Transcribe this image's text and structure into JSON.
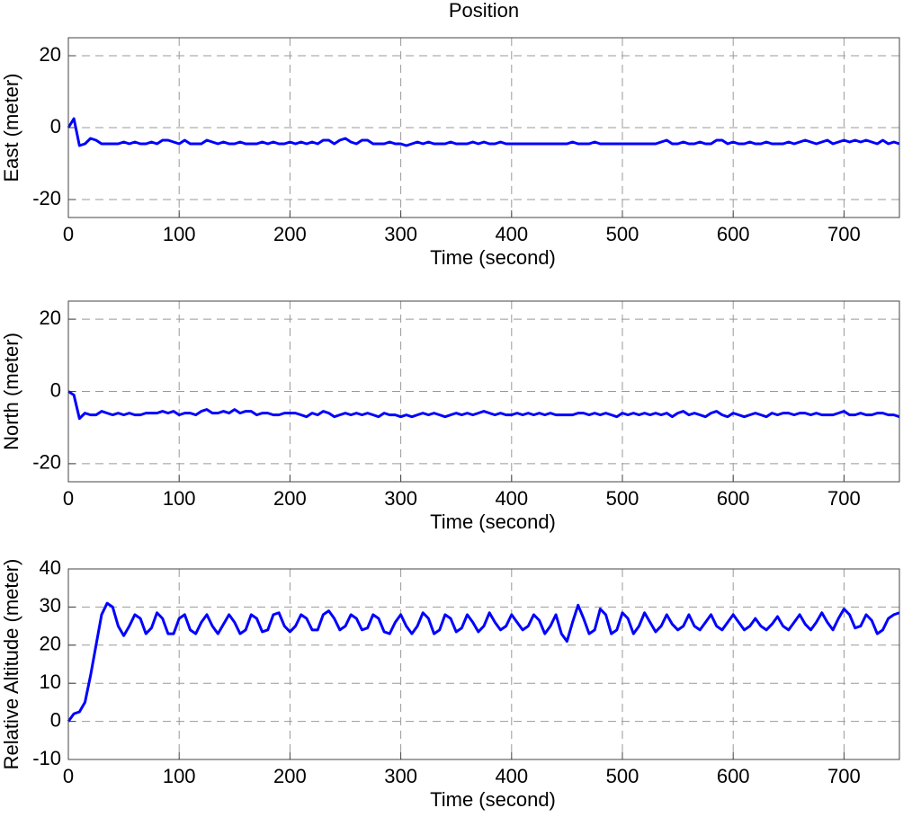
{
  "chart_data": [
    {
      "type": "line",
      "title": "Position",
      "xlabel": "Time (second)",
      "ylabel": "East (meter)",
      "xlim": [
        0,
        750
      ],
      "xticks": [
        0,
        100,
        200,
        300,
        400,
        500,
        600,
        700
      ],
      "ylim": [
        -25,
        25
      ],
      "yticks": [
        -20,
        0,
        20
      ],
      "grid": true,
      "x": [
        0,
        5,
        10,
        15,
        20,
        25,
        30,
        35,
        40,
        45,
        50,
        55,
        60,
        65,
        70,
        75,
        80,
        85,
        90,
        95,
        100,
        105,
        110,
        115,
        120,
        125,
        130,
        135,
        140,
        145,
        150,
        155,
        160,
        165,
        170,
        175,
        180,
        185,
        190,
        195,
        200,
        205,
        210,
        215,
        220,
        225,
        230,
        235,
        240,
        245,
        250,
        255,
        260,
        265,
        270,
        275,
        280,
        285,
        290,
        295,
        300,
        305,
        310,
        315,
        320,
        325,
        330,
        335,
        340,
        345,
        350,
        355,
        360,
        365,
        370,
        375,
        380,
        385,
        390,
        395,
        400,
        405,
        410,
        415,
        420,
        425,
        430,
        435,
        440,
        445,
        450,
        455,
        460,
        465,
        470,
        475,
        480,
        485,
        490,
        495,
        500,
        505,
        510,
        515,
        520,
        525,
        530,
        535,
        540,
        545,
        550,
        555,
        560,
        565,
        570,
        575,
        580,
        585,
        590,
        595,
        600,
        605,
        610,
        615,
        620,
        625,
        630,
        635,
        640,
        645,
        650,
        655,
        660,
        665,
        670,
        675,
        680,
        685,
        690,
        695,
        700,
        705,
        710,
        715,
        720,
        725,
        730,
        735,
        740,
        745,
        750
      ],
      "series": [
        {
          "color": "#0000ff",
          "values": [
            0,
            2.5,
            -5,
            -4.5,
            -3,
            -3.5,
            -4.5,
            -4.5,
            -4.5,
            -4.5,
            -4,
            -4.5,
            -4,
            -4.5,
            -4.5,
            -4,
            -4.5,
            -3.5,
            -3.5,
            -4,
            -4.5,
            -3.5,
            -4.5,
            -4.5,
            -4.5,
            -3.5,
            -4,
            -4.5,
            -4,
            -4.5,
            -4.5,
            -4,
            -4.5,
            -4.5,
            -4.5,
            -4,
            -4.5,
            -4,
            -4.5,
            -4.5,
            -4,
            -4.5,
            -4,
            -4.5,
            -4,
            -4.5,
            -3.5,
            -3.5,
            -4.5,
            -3.5,
            -3,
            -4,
            -4.5,
            -3.5,
            -3.5,
            -4.5,
            -4.5,
            -4.5,
            -4,
            -4.5,
            -4.5,
            -5,
            -4.5,
            -4,
            -4.5,
            -4,
            -4.5,
            -4.5,
            -4.5,
            -4,
            -4.5,
            -4.5,
            -4.5,
            -4,
            -4.5,
            -4,
            -4.5,
            -4.5,
            -4,
            -4.5,
            -4.5,
            -4.5,
            -4.5,
            -4.5,
            -4.5,
            -4.5,
            -4.5,
            -4.5,
            -4.5,
            -4.5,
            -4.5,
            -4,
            -4.5,
            -4.5,
            -4.5,
            -4,
            -4.5,
            -4.5,
            -4.5,
            -4.5,
            -4.5,
            -4.5,
            -4.5,
            -4.5,
            -4.5,
            -4.5,
            -4.5,
            -4,
            -3.5,
            -4.5,
            -4.5,
            -4,
            -4.5,
            -4.5,
            -4,
            -4.5,
            -4.5,
            -3.5,
            -3.5,
            -4.5,
            -4,
            -4.5,
            -4.5,
            -4,
            -4.5,
            -4.5,
            -4,
            -4.5,
            -4.5,
            -4.5,
            -4,
            -4.5,
            -4,
            -3.5,
            -4,
            -4.5,
            -4,
            -3.5,
            -4.5,
            -4,
            -3.5,
            -4,
            -3.5,
            -4,
            -3.5,
            -4,
            -4.5,
            -3.5,
            -4.5,
            -4,
            -4.5
          ]
        }
      ]
    },
    {
      "type": "line",
      "xlabel": "Time (second)",
      "ylabel": "North (meter)",
      "xlim": [
        0,
        750
      ],
      "xticks": [
        0,
        100,
        200,
        300,
        400,
        500,
        600,
        700
      ],
      "ylim": [
        -25,
        25
      ],
      "yticks": [
        -20,
        0,
        20
      ],
      "grid": true,
      "x": [
        0,
        5,
        10,
        15,
        20,
        25,
        30,
        35,
        40,
        45,
        50,
        55,
        60,
        65,
        70,
        75,
        80,
        85,
        90,
        95,
        100,
        105,
        110,
        115,
        120,
        125,
        130,
        135,
        140,
        145,
        150,
        155,
        160,
        165,
        170,
        175,
        180,
        185,
        190,
        195,
        200,
        205,
        210,
        215,
        220,
        225,
        230,
        235,
        240,
        245,
        250,
        255,
        260,
        265,
        270,
        275,
        280,
        285,
        290,
        295,
        300,
        305,
        310,
        315,
        320,
        325,
        330,
        335,
        340,
        345,
        350,
        355,
        360,
        365,
        370,
        375,
        380,
        385,
        390,
        395,
        400,
        405,
        410,
        415,
        420,
        425,
        430,
        435,
        440,
        445,
        450,
        455,
        460,
        465,
        470,
        475,
        480,
        485,
        490,
        495,
        500,
        505,
        510,
        515,
        520,
        525,
        530,
        535,
        540,
        545,
        550,
        555,
        560,
        565,
        570,
        575,
        580,
        585,
        590,
        595,
        600,
        605,
        610,
        615,
        620,
        625,
        630,
        635,
        640,
        645,
        650,
        655,
        660,
        665,
        670,
        675,
        680,
        685,
        690,
        695,
        700,
        705,
        710,
        715,
        720,
        725,
        730,
        735,
        740,
        745,
        750
      ],
      "series": [
        {
          "color": "#0000ff",
          "values": [
            0,
            -1,
            -7.5,
            -6,
            -6.5,
            -6.5,
            -5.5,
            -6,
            -6.5,
            -6,
            -6.5,
            -6,
            -6.5,
            -6.5,
            -6,
            -6,
            -6,
            -5.5,
            -6,
            -5.5,
            -6.5,
            -6,
            -6,
            -6.5,
            -5.5,
            -5,
            -6,
            -6,
            -5.5,
            -6,
            -5,
            -6,
            -5.5,
            -5.5,
            -6.5,
            -6,
            -6,
            -6.5,
            -6.5,
            -6,
            -6,
            -6,
            -6.5,
            -7,
            -6,
            -6.5,
            -5.5,
            -6,
            -7,
            -6.5,
            -6,
            -6.5,
            -6,
            -6.5,
            -6,
            -6.5,
            -7,
            -6,
            -6.5,
            -6.5,
            -7,
            -6.5,
            -7,
            -6.5,
            -6,
            -6.5,
            -6,
            -6.5,
            -7,
            -6.5,
            -6,
            -6.5,
            -6,
            -6.5,
            -6,
            -5.5,
            -6,
            -6.5,
            -6,
            -6.5,
            -6.5,
            -6,
            -6.5,
            -6,
            -6.5,
            -6,
            -6.5,
            -6,
            -6.5,
            -6.5,
            -6.5,
            -6.5,
            -6,
            -6,
            -6.5,
            -6,
            -6.5,
            -6,
            -6.5,
            -7,
            -6,
            -6.5,
            -6,
            -6.5,
            -6,
            -6.5,
            -6,
            -6.5,
            -6,
            -7,
            -6,
            -5.5,
            -6.5,
            -6,
            -6.5,
            -7,
            -6,
            -5.5,
            -6.5,
            -7,
            -6,
            -6.5,
            -7,
            -6.5,
            -6,
            -6.5,
            -7,
            -6,
            -6.5,
            -6,
            -6,
            -6.5,
            -6,
            -6,
            -6.5,
            -6,
            -6.5,
            -6.5,
            -6.5,
            -6,
            -5.5,
            -6.5,
            -6.5,
            -6,
            -6.5,
            -6.5,
            -6,
            -6,
            -6.5,
            -6.5,
            -7
          ]
        }
      ]
    },
    {
      "type": "line",
      "xlabel": "Time (second)",
      "ylabel": "Relative Altitude (meter)",
      "xlim": [
        0,
        750
      ],
      "xticks": [
        0,
        100,
        200,
        300,
        400,
        500,
        600,
        700
      ],
      "ylim": [
        -10,
        40
      ],
      "yticks": [
        -10,
        0,
        10,
        20,
        30,
        40
      ],
      "grid": true,
      "x": [
        0,
        5,
        10,
        15,
        20,
        25,
        30,
        35,
        40,
        45,
        50,
        55,
        60,
        65,
        70,
        75,
        80,
        85,
        90,
        95,
        100,
        105,
        110,
        115,
        120,
        125,
        130,
        135,
        140,
        145,
        150,
        155,
        160,
        165,
        170,
        175,
        180,
        185,
        190,
        195,
        200,
        205,
        210,
        215,
        220,
        225,
        230,
        235,
        240,
        245,
        250,
        255,
        260,
        265,
        270,
        275,
        280,
        285,
        290,
        295,
        300,
        305,
        310,
        315,
        320,
        325,
        330,
        335,
        340,
        345,
        350,
        355,
        360,
        365,
        370,
        375,
        380,
        385,
        390,
        395,
        400,
        405,
        410,
        415,
        420,
        425,
        430,
        435,
        440,
        445,
        450,
        455,
        460,
        465,
        470,
        475,
        480,
        485,
        490,
        495,
        500,
        505,
        510,
        515,
        520,
        525,
        530,
        535,
        540,
        545,
        550,
        555,
        560,
        565,
        570,
        575,
        580,
        585,
        590,
        595,
        600,
        605,
        610,
        615,
        620,
        625,
        630,
        635,
        640,
        645,
        650,
        655,
        660,
        665,
        670,
        675,
        680,
        685,
        690,
        695,
        700,
        705,
        710,
        715,
        720,
        725,
        730,
        735,
        740,
        745,
        750
      ],
      "series": [
        {
          "color": "#0000ff",
          "values": [
            0,
            2,
            2.5,
            5,
            12,
            20,
            28,
            31,
            30,
            25,
            22.5,
            25,
            28,
            27,
            23,
            24.5,
            28.5,
            27,
            23,
            23,
            27,
            28,
            24,
            23,
            26,
            28,
            25,
            23,
            25.5,
            28,
            26,
            23,
            24,
            28,
            27,
            23.5,
            24,
            28,
            28.5,
            25,
            23.5,
            25,
            28,
            27,
            24,
            24,
            28,
            29,
            27,
            24,
            25,
            28,
            27,
            24,
            24.5,
            28,
            27,
            23.5,
            23,
            26,
            28,
            25,
            23,
            25,
            28.5,
            27,
            23,
            24,
            28,
            27,
            23.5,
            24.5,
            28,
            26,
            23.5,
            25,
            28.5,
            26,
            24,
            25,
            28,
            26,
            24,
            25,
            28,
            26.5,
            23,
            25,
            28,
            23,
            21,
            26,
            30.5,
            27,
            23,
            24,
            29.5,
            28,
            23,
            24,
            28.5,
            27,
            23,
            25,
            28.5,
            26,
            23.5,
            25,
            28,
            25.5,
            24,
            25,
            28,
            25,
            24,
            26,
            28,
            25,
            24,
            26,
            28,
            26,
            24,
            25,
            27,
            25,
            24,
            25.5,
            27.5,
            25,
            24,
            26,
            28,
            25.5,
            24,
            26,
            28.5,
            26,
            24,
            27,
            29.5,
            28,
            24.5,
            25,
            28,
            26.5,
            23,
            24,
            27,
            28,
            28.5
          ]
        }
      ]
    }
  ]
}
